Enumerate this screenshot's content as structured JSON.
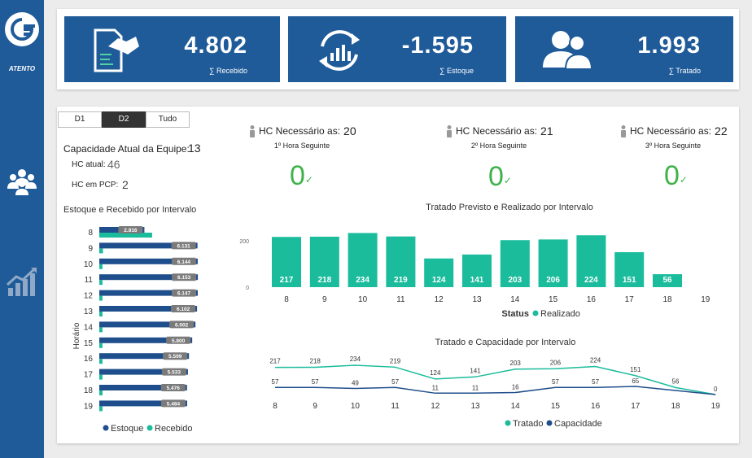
{
  "sidebar": {
    "brand": "ATENTO",
    "icons": [
      "logo-icon",
      "team-icon",
      "growth-chart-icon"
    ]
  },
  "kpis": [
    {
      "value": "4.802",
      "label": "∑ Recebido",
      "icon": "handshake-document-icon"
    },
    {
      "value": "-1.595",
      "label": "∑ Estoque",
      "icon": "cycle-chart-icon"
    },
    {
      "value": "1.993",
      "label": "∑ Tratado",
      "icon": "users-icon"
    }
  ],
  "tabs": [
    {
      "label": "D1",
      "active": false
    },
    {
      "label": "D2",
      "active": true
    },
    {
      "label": "Tudo",
      "active": false
    }
  ],
  "capacity": {
    "label": "Capacidade Atual da Equipe:",
    "value": "13",
    "hc_atual_label": "HC atual:",
    "hc_atual_value": "46",
    "hc_pcp_label": "HC em PCP:",
    "hc_pcp_value": "2"
  },
  "hc_needed": [
    {
      "label": "HC Necessário as:",
      "value": "20",
      "sub": "1º Hora Seguinte",
      "current": "0"
    },
    {
      "label": "HC Necessário as:",
      "value": "21",
      "sub": "2º Hora Seguinte",
      "current": "0"
    },
    {
      "label": "HC Necessário as:",
      "value": "22",
      "sub": "3º Hora Seguinte",
      "current": "0"
    }
  ],
  "colors": {
    "primary": "#1f5b99",
    "teal": "#1abc9c",
    "navy": "#1f4e8c",
    "green": "#3fb24a",
    "label_bg": "#7a7a7a"
  },
  "chart_data": [
    {
      "type": "bar",
      "orientation": "horizontal",
      "title": "Estoque e Recebido por Intervalo",
      "ylabel": "Horário",
      "categories": [
        "8",
        "9",
        "10",
        "11",
        "12",
        "13",
        "14",
        "15",
        "16",
        "17",
        "18",
        "19"
      ],
      "series": [
        {
          "name": "Estoque",
          "values": [
            2816,
            6131,
            6144,
            6153,
            6147,
            6102,
            6002,
            5800,
            5599,
            5533,
            5476,
            5484
          ],
          "value_labels": [
            "2.816",
            "6.131",
            "6.144",
            "6.153",
            "6.147",
            "6.102",
            "6.002",
            "5.800",
            "5.599",
            "5.533",
            "5.476",
            "5.484"
          ]
        },
        {
          "name": "Recebido",
          "values": [
            3300,
            230,
            200,
            200,
            200,
            200,
            200,
            200,
            200,
            200,
            200,
            200
          ]
        }
      ],
      "legend": [
        "Estoque",
        "Recebido"
      ],
      "legend_position": "bottom"
    },
    {
      "type": "bar",
      "title": "Tratado Previsto e Realizado por Intervalo",
      "categories": [
        "8",
        "9",
        "10",
        "11",
        "12",
        "13",
        "14",
        "15",
        "16",
        "17",
        "18",
        "19"
      ],
      "series": [
        {
          "name": "Realizado",
          "values": [
            217,
            218,
            234,
            219,
            124,
            141,
            203,
            206,
            224,
            151,
            56,
            0
          ]
        }
      ],
      "yticks": [
        0,
        200
      ],
      "ylim": [
        0,
        260
      ],
      "legend_title": "Status",
      "legend": [
        "Realizado"
      ],
      "legend_position": "bottom"
    },
    {
      "type": "line",
      "title": "Tratado e Capacidade por Intervalo",
      "categories": [
        "8",
        "9",
        "10",
        "11",
        "12",
        "13",
        "14",
        "15",
        "16",
        "17",
        "18",
        "19"
      ],
      "series": [
        {
          "name": "Tratado",
          "values": [
            217,
            218,
            234,
            219,
            124,
            141,
            203,
            206,
            224,
            151,
            56,
            0
          ]
        },
        {
          "name": "Capacidade",
          "values": [
            57,
            57,
            49,
            57,
            11,
            11,
            16,
            57,
            57,
            65,
            null,
            0
          ]
        }
      ],
      "legend": [
        "Tratado",
        "Capacidade"
      ],
      "legend_position": "bottom"
    }
  ]
}
